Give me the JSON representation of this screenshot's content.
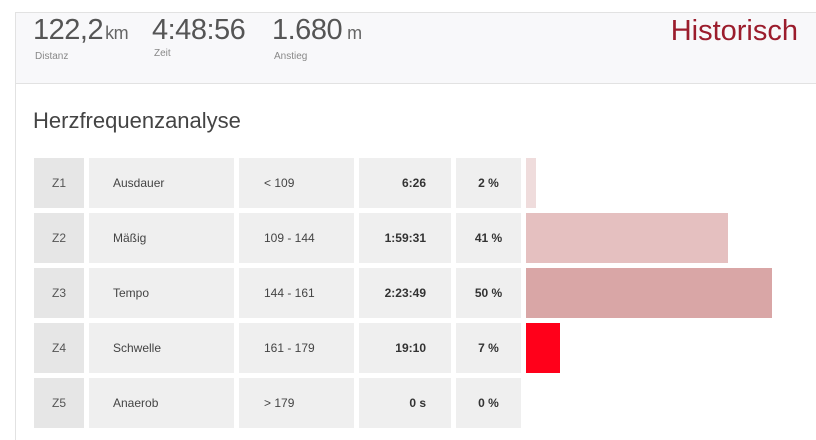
{
  "header": {
    "distance": {
      "value": "122,2",
      "unit": "km",
      "label": "Distanz"
    },
    "time": {
      "value": "4:48:56",
      "label": "Zeit"
    },
    "climb": {
      "value": "1.680",
      "unit": "m",
      "label": "Anstieg"
    },
    "badge": "Historisch"
  },
  "section_title": "Herzfrequenzanalyse",
  "zones": [
    {
      "zone": "Z1",
      "name": "Ausdauer",
      "range": "< 109",
      "time": "6:26",
      "percent": "2 %",
      "share": 0.02,
      "color": "#efdcdc"
    },
    {
      "zone": "Z2",
      "name": "Mäßig",
      "range": "109 - 144",
      "time": "1:59:31",
      "percent": "41 %",
      "share": 0.41,
      "color": "#e5c0c0"
    },
    {
      "zone": "Z3",
      "name": "Tempo",
      "range": "144 - 161",
      "time": "2:23:49",
      "percent": "50 %",
      "share": 0.5,
      "color": "#d9a6a6"
    },
    {
      "zone": "Z4",
      "name": "Schwelle",
      "range": "161 - 179",
      "time": "19:10",
      "percent": "7 %",
      "share": 0.07,
      "color": "#ff001a"
    },
    {
      "zone": "Z5",
      "name": "Anaerob",
      "range": "> 179",
      "time": "0 s",
      "percent": "0 %",
      "share": 0.0,
      "color": "#e5c0c0"
    }
  ],
  "colors": {
    "accent": "#9b1c2c",
    "cell_bg": "#efefef"
  }
}
